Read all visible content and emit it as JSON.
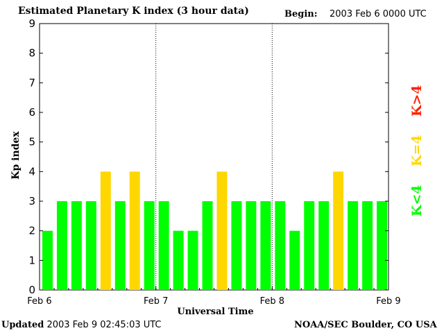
{
  "header": {
    "title": "Estimated Planetary K index (3 hour data)",
    "begin_label": "Begin:",
    "begin_value": "2003 Feb 6 0000 UTC"
  },
  "footer": {
    "updated_label": "Updated",
    "updated_value": "2003 Feb  9 02:45:03 UTC",
    "credit": "NOAA/SEC Boulder, CO USA"
  },
  "legend": {
    "low": "K<4",
    "mid": "K=4",
    "high": "K>4"
  },
  "colors": {
    "low": "#00ff00",
    "mid": "#ffd700",
    "high": "#ff2000",
    "axis": "#000000"
  },
  "chart_data": {
    "type": "bar",
    "title": "Estimated Planetary K index (3 hour data)",
    "xlabel": "Universal Time",
    "ylabel": "Kp index",
    "ylim": [
      0,
      9
    ],
    "yticks": [
      0,
      1,
      2,
      3,
      4,
      5,
      6,
      7,
      8,
      9
    ],
    "xticks": [
      "Feb 6",
      "Feb 7",
      "Feb 8",
      "Feb 9"
    ],
    "bar_interval_hours": 3,
    "values": [
      2,
      3,
      3,
      3,
      4,
      3,
      4,
      3,
      3,
      2,
      2,
      3,
      4,
      3,
      3,
      3,
      3,
      2,
      3,
      3,
      4,
      3,
      3,
      3
    ]
  }
}
